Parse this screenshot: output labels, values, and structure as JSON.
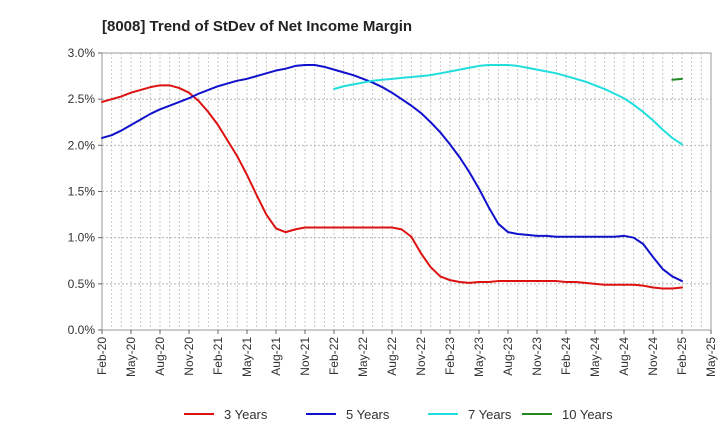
{
  "chart_data": {
    "type": "line",
    "title": "[8008]  Trend of StDev of Net Income Margin",
    "xlabel": "",
    "ylabel": "",
    "ylim": [
      0,
      3.0
    ],
    "yticks": [
      {
        "value": 0.0,
        "label": "0.0%"
      },
      {
        "value": 0.5,
        "label": "0.5%"
      },
      {
        "value": 1.0,
        "label": "1.0%"
      },
      {
        "value": 1.5,
        "label": "1.5%"
      },
      {
        "value": 2.0,
        "label": "2.0%"
      },
      {
        "value": 2.5,
        "label": "2.5%"
      },
      {
        "value": 3.0,
        "label": "3.0%"
      }
    ],
    "xticks": [
      "Feb-20",
      "May-20",
      "Aug-20",
      "Nov-20",
      "Feb-21",
      "May-21",
      "Aug-21",
      "Nov-21",
      "Feb-22",
      "May-22",
      "Aug-22",
      "Nov-22",
      "Feb-23",
      "May-23",
      "Aug-23",
      "Nov-23",
      "Feb-24",
      "May-24",
      "Aug-24",
      "Nov-24",
      "Feb-25",
      "May-25"
    ],
    "x_unit": "month",
    "grid": true,
    "legend_position": "bottom",
    "series": [
      {
        "name": "3 Years",
        "color": "#dd1111",
        "points": [
          [
            "Feb-20",
            2.47
          ],
          [
            "Mar-20",
            2.5
          ],
          [
            "Apr-20",
            2.53
          ],
          [
            "May-20",
            2.57
          ],
          [
            "Jun-20",
            2.6
          ],
          [
            "Jul-20",
            2.63
          ],
          [
            "Aug-20",
            2.65
          ],
          [
            "Sep-20",
            2.65
          ],
          [
            "Oct-20",
            2.62
          ],
          [
            "Nov-20",
            2.57
          ],
          [
            "Dec-20",
            2.48
          ],
          [
            "Jan-21",
            2.36
          ],
          [
            "Feb-21",
            2.22
          ],
          [
            "Mar-21",
            2.05
          ],
          [
            "Apr-21",
            1.88
          ],
          [
            "May-21",
            1.68
          ],
          [
            "Jun-21",
            1.46
          ],
          [
            "Jul-21",
            1.25
          ],
          [
            "Aug-21",
            1.1
          ],
          [
            "Sep-21",
            1.06
          ],
          [
            "Oct-21",
            1.09
          ],
          [
            "Nov-21",
            1.11
          ],
          [
            "Dec-21",
            1.11
          ],
          [
            "Jan-22",
            1.11
          ],
          [
            "Feb-22",
            1.11
          ],
          [
            "Mar-22",
            1.11
          ],
          [
            "Apr-22",
            1.11
          ],
          [
            "May-22",
            1.11
          ],
          [
            "Jun-22",
            1.11
          ],
          [
            "Jul-22",
            1.11
          ],
          [
            "Aug-22",
            1.11
          ],
          [
            "Sep-22",
            1.09
          ],
          [
            "Oct-22",
            1.01
          ],
          [
            "Nov-22",
            0.83
          ],
          [
            "Dec-22",
            0.68
          ],
          [
            "Jan-23",
            0.58
          ],
          [
            "Feb-23",
            0.54
          ],
          [
            "Mar-23",
            0.52
          ],
          [
            "Apr-23",
            0.51
          ],
          [
            "May-23",
            0.52
          ],
          [
            "Jun-23",
            0.52
          ],
          [
            "Jul-23",
            0.53
          ],
          [
            "Aug-23",
            0.53
          ],
          [
            "Sep-23",
            0.53
          ],
          [
            "Oct-23",
            0.53
          ],
          [
            "Nov-23",
            0.53
          ],
          [
            "Dec-23",
            0.53
          ],
          [
            "Jan-24",
            0.53
          ],
          [
            "Feb-24",
            0.52
          ],
          [
            "Mar-24",
            0.52
          ],
          [
            "Apr-24",
            0.51
          ],
          [
            "May-24",
            0.5
          ],
          [
            "Jun-24",
            0.49
          ],
          [
            "Jul-24",
            0.49
          ],
          [
            "Aug-24",
            0.49
          ],
          [
            "Sep-24",
            0.49
          ],
          [
            "Oct-24",
            0.48
          ],
          [
            "Nov-24",
            0.46
          ],
          [
            "Dec-24",
            0.45
          ],
          [
            "Jan-25",
            0.45
          ],
          [
            "Feb-25",
            0.46
          ]
        ]
      },
      {
        "name": "5 Years",
        "color": "#1111cc",
        "points": [
          [
            "Feb-20",
            2.08
          ],
          [
            "Mar-20",
            2.11
          ],
          [
            "Apr-20",
            2.16
          ],
          [
            "May-20",
            2.22
          ],
          [
            "Jun-20",
            2.28
          ],
          [
            "Jul-20",
            2.34
          ],
          [
            "Aug-20",
            2.39
          ],
          [
            "Sep-20",
            2.43
          ],
          [
            "Oct-20",
            2.47
          ],
          [
            "Nov-20",
            2.51
          ],
          [
            "Dec-20",
            2.56
          ],
          [
            "Jan-21",
            2.6
          ],
          [
            "Feb-21",
            2.64
          ],
          [
            "Mar-21",
            2.67
          ],
          [
            "Apr-21",
            2.7
          ],
          [
            "May-21",
            2.72
          ],
          [
            "Jun-21",
            2.75
          ],
          [
            "Jul-21",
            2.78
          ],
          [
            "Aug-21",
            2.81
          ],
          [
            "Sep-21",
            2.83
          ],
          [
            "Oct-21",
            2.86
          ],
          [
            "Nov-21",
            2.87
          ],
          [
            "Dec-21",
            2.87
          ],
          [
            "Jan-22",
            2.85
          ],
          [
            "Feb-22",
            2.82
          ],
          [
            "Mar-22",
            2.79
          ],
          [
            "Apr-22",
            2.76
          ],
          [
            "May-22",
            2.72
          ],
          [
            "Jun-22",
            2.68
          ],
          [
            "Jul-22",
            2.63
          ],
          [
            "Aug-22",
            2.57
          ],
          [
            "Sep-22",
            2.5
          ],
          [
            "Oct-22",
            2.43
          ],
          [
            "Nov-22",
            2.35
          ],
          [
            "Dec-22",
            2.25
          ],
          [
            "Jan-23",
            2.14
          ],
          [
            "Feb-23",
            2.01
          ],
          [
            "Mar-23",
            1.87
          ],
          [
            "Apr-23",
            1.71
          ],
          [
            "May-23",
            1.53
          ],
          [
            "Jun-23",
            1.33
          ],
          [
            "Jul-23",
            1.15
          ],
          [
            "Aug-23",
            1.06
          ],
          [
            "Sep-23",
            1.04
          ],
          [
            "Oct-23",
            1.03
          ],
          [
            "Nov-23",
            1.02
          ],
          [
            "Dec-23",
            1.02
          ],
          [
            "Jan-24",
            1.01
          ],
          [
            "Feb-24",
            1.01
          ],
          [
            "Mar-24",
            1.01
          ],
          [
            "Apr-24",
            1.01
          ],
          [
            "May-24",
            1.01
          ],
          [
            "Jun-24",
            1.01
          ],
          [
            "Jul-24",
            1.01
          ],
          [
            "Aug-24",
            1.02
          ],
          [
            "Sep-24",
            1.0
          ],
          [
            "Oct-24",
            0.93
          ],
          [
            "Nov-24",
            0.79
          ],
          [
            "Dec-24",
            0.66
          ],
          [
            "Jan-25",
            0.58
          ],
          [
            "Feb-25",
            0.53
          ]
        ]
      },
      {
        "name": "7 Years",
        "color": "#22dddd",
        "points": [
          [
            "Feb-22",
            2.61
          ],
          [
            "Mar-22",
            2.64
          ],
          [
            "Apr-22",
            2.66
          ],
          [
            "May-22",
            2.68
          ],
          [
            "Jun-22",
            2.7
          ],
          [
            "Jul-22",
            2.71
          ],
          [
            "Aug-22",
            2.72
          ],
          [
            "Sep-22",
            2.73
          ],
          [
            "Oct-22",
            2.74
          ],
          [
            "Nov-22",
            2.75
          ],
          [
            "Dec-22",
            2.76
          ],
          [
            "Jan-23",
            2.78
          ],
          [
            "Feb-23",
            2.8
          ],
          [
            "Mar-23",
            2.82
          ],
          [
            "Apr-23",
            2.84
          ],
          [
            "May-23",
            2.86
          ],
          [
            "Jun-23",
            2.87
          ],
          [
            "Jul-23",
            2.87
          ],
          [
            "Aug-23",
            2.87
          ],
          [
            "Sep-23",
            2.86
          ],
          [
            "Oct-23",
            2.84
          ],
          [
            "Nov-23",
            2.82
          ],
          [
            "Dec-23",
            2.8
          ],
          [
            "Jan-24",
            2.78
          ],
          [
            "Feb-24",
            2.75
          ],
          [
            "Mar-24",
            2.72
          ],
          [
            "Apr-24",
            2.69
          ],
          [
            "May-24",
            2.65
          ],
          [
            "Jun-24",
            2.61
          ],
          [
            "Jul-24",
            2.56
          ],
          [
            "Aug-24",
            2.51
          ],
          [
            "Sep-24",
            2.44
          ],
          [
            "Oct-24",
            2.36
          ],
          [
            "Nov-24",
            2.27
          ],
          [
            "Dec-24",
            2.17
          ],
          [
            "Jan-25",
            2.08
          ],
          [
            "Feb-25",
            2.01
          ]
        ]
      },
      {
        "name": "10 Years",
        "color": "#228822",
        "points": [
          [
            "Jan-25",
            2.71
          ],
          [
            "Feb-25",
            2.72
          ]
        ]
      }
    ]
  }
}
